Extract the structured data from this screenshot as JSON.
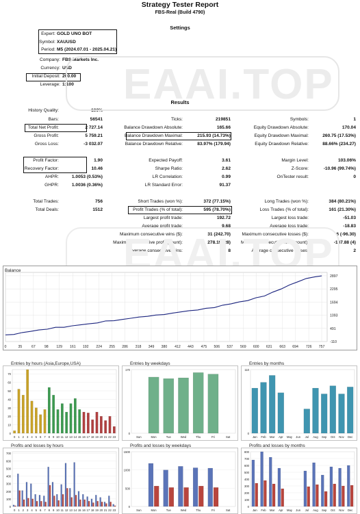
{
  "header": {
    "title": "Strategy Tester Report",
    "subtitle": "FBS-Real (Build 4790)"
  },
  "settings": {
    "heading": "Settings",
    "fields": [
      {
        "label": "Expert:",
        "value": "GOLD UNO BOT"
      },
      {
        "label": "Symbol:",
        "value": "XAUUSD"
      },
      {
        "label": "Period:",
        "value": "M5 (2024.07.01 - 2025.04.21)"
      },
      {
        "label": "Company:",
        "value": "FBS Markets Inc."
      },
      {
        "label": "Currency:",
        "value": "USD"
      },
      {
        "label": "Initial Deposit:",
        "value": "200.00"
      },
      {
        "label": "Leverage:",
        "value": "1:100"
      }
    ]
  },
  "results": {
    "heading": "Results",
    "col1": [
      {
        "label": "History Quality:",
        "value": "100%"
      },
      {
        "label": "Bars:",
        "value": "56541"
      },
      {
        "label": "Total Net Profit:",
        "value": "2 727.14"
      },
      {
        "label": "Gross Profit:",
        "value": "5 759.21"
      },
      {
        "label": "Gross Loss:",
        "value": "-3 032.07"
      },
      {
        "label": "Profit Factor:",
        "value": "1.90"
      },
      {
        "label": "Recovery Factor:",
        "value": "10.46"
      },
      {
        "label": "AHPR:",
        "value": "1.0053 (0.53%)"
      },
      {
        "label": "GHPR:",
        "value": "1.0036 (0.36%)"
      },
      {
        "label": "Total Trades:",
        "value": "756"
      },
      {
        "label": "Total Deals:",
        "value": "1512"
      }
    ],
    "col2": [
      {
        "label": "Ticks:",
        "value": "219851"
      },
      {
        "label": "Balance Drawdown Absolute:",
        "value": "165.66"
      },
      {
        "label": "Balance Drawdown Maximal:",
        "value": "215.93 (14.73%)"
      },
      {
        "label": "Balance Drawdown Relative:",
        "value": "83.97% (179.94)"
      },
      {
        "label": "Expected Payoff:",
        "value": "3.61"
      },
      {
        "label": "Sharpe Ratio:",
        "value": "2.62"
      },
      {
        "label": "LR Correlation:",
        "value": "0.99"
      },
      {
        "label": "LR Standard Error:",
        "value": "91.37"
      },
      {
        "label": "Short Trades (won %):",
        "value": "372 (77.15%)"
      },
      {
        "label": "Profit Trades (% of total):",
        "value": "595 (78.70%)"
      },
      {
        "label": "Largest profit trade:",
        "value": "192.72"
      },
      {
        "label": "Average profit trade:",
        "value": "9.68"
      },
      {
        "label": "Maximum consecutive wins ($):",
        "value": "31 (242.70)"
      },
      {
        "label": "Maximal consecutive profit (count):",
        "value": "278.19 (28)"
      },
      {
        "label": "Average consecutive wins:",
        "value": "8"
      }
    ],
    "col3": [
      {
        "label": "Symbols:",
        "value": "1"
      },
      {
        "label": "Equity Drawdown Absolute:",
        "value": "170.04"
      },
      {
        "label": "Equity Drawdown Maximal:",
        "value": "260.75 (17.53%)"
      },
      {
        "label": "Equity Drawdown Relative:",
        "value": "88.66% (234.27)"
      },
      {
        "label": "Margin Level:",
        "value": "103.06%"
      },
      {
        "label": "Z-Score:",
        "value": "-10.96 (99.74%)"
      },
      {
        "label": "OnTester result:",
        "value": "0"
      },
      {
        "label": "Long Trades (won %):",
        "value": "384 (80.21%)"
      },
      {
        "label": "Loss Trades (% of total):",
        "value": "161 (21.30%)"
      },
      {
        "label": "Largest loss trade:",
        "value": "-51.03"
      },
      {
        "label": "Average loss trade:",
        "value": "-18.83"
      },
      {
        "label": "Maximum consecutive losses ($):",
        "value": "6 (-96.30)"
      },
      {
        "label": "Maximal consecutive loss (count):",
        "value": "-137.88 (4)"
      },
      {
        "label": "Average consecutive losses:",
        "value": "2"
      }
    ]
  },
  "watermark": "EAAI.TOP",
  "chart_data": [
    {
      "type": "line",
      "title": "Balance",
      "x_ticks": [
        0,
        35,
        67,
        98,
        129,
        161,
        192,
        224,
        255,
        286,
        318,
        349,
        380,
        412,
        443,
        475,
        506,
        537,
        569,
        600,
        631,
        663,
        694,
        726,
        757
      ],
      "y_ticks": [
        -110,
        491,
        1093,
        1694,
        2295,
        2897
      ],
      "xlim": [
        0,
        770
      ],
      "ylim": [
        -110,
        3050
      ],
      "x": [
        0,
        20,
        40,
        60,
        80,
        100,
        120,
        140,
        160,
        180,
        200,
        220,
        240,
        260,
        280,
        300,
        320,
        340,
        360,
        380,
        400,
        420,
        440,
        460,
        480,
        500,
        520,
        540,
        560,
        580,
        600,
        620,
        640,
        660,
        680,
        700,
        720,
        740,
        757
      ],
      "y": [
        180,
        230,
        300,
        360,
        420,
        470,
        530,
        560,
        610,
        660,
        700,
        760,
        820,
        860,
        900,
        960,
        1010,
        1060,
        1090,
        1140,
        1190,
        1250,
        1300,
        1350,
        1400,
        1460,
        1550,
        1620,
        1700,
        1780,
        1880,
        1990,
        2150,
        2300,
        2480,
        2640,
        2760,
        2860,
        2890
      ]
    },
    {
      "type": "bar",
      "title": "Entries by hours (Asia,Europe,USA)",
      "categories": [
        "0",
        "1",
        "2",
        "3",
        "4",
        "5",
        "6",
        "7",
        "8",
        "9",
        "10",
        "11",
        "12",
        "13",
        "14",
        "15",
        "16",
        "17",
        "18",
        "19",
        "20",
        "21",
        "22",
        "23"
      ],
      "values": [
        3,
        52,
        45,
        75,
        38,
        30,
        22,
        28,
        54,
        45,
        28,
        35,
        25,
        35,
        41,
        28,
        25,
        24,
        16,
        25,
        20,
        15,
        20,
        8
      ],
      "y_ticks": [
        0,
        10,
        20,
        30,
        40,
        50,
        60,
        70
      ],
      "ylim": [
        0,
        75
      ],
      "colors": [
        "#c8a227",
        "#3c9a50",
        "#b04040"
      ]
    },
    {
      "type": "bar",
      "title": "Entries by weekdays",
      "categories": [
        "Sun",
        "Mon",
        "Tue",
        "Wed",
        "Thu",
        "Fri",
        "Sat"
      ],
      "values": [
        0,
        150,
        146,
        148,
        162,
        158,
        0
      ],
      "y_ticks": [
        0,
        170
      ],
      "ylim": [
        0,
        170
      ]
    },
    {
      "type": "bar",
      "title": "Entries by months",
      "categories": [
        "Jan",
        "Feb",
        "Mar",
        "Apr",
        "May",
        "Jun",
        "Jul",
        "Aug",
        "Sep",
        "Oct",
        "Nov",
        "Dec"
      ],
      "values": [
        78,
        88,
        100,
        70,
        0,
        0,
        42,
        78,
        68,
        82,
        68,
        80
      ],
      "y_ticks": [
        0,
        110
      ],
      "ylim": [
        0,
        110
      ]
    },
    {
      "type": "bar",
      "title": "Profits and losses by hours",
      "categories": [
        "0",
        "1",
        "2",
        "3",
        "4",
        "5",
        "6",
        "7",
        "8",
        "9",
        "10",
        "11",
        "12",
        "13",
        "14",
        "15",
        "16",
        "17",
        "18",
        "19",
        "20",
        "21",
        "22",
        "23"
      ],
      "series": [
        {
          "values": [
            20,
            430,
            210,
            320,
            300,
            160,
            150,
            140,
            520,
            320,
            160,
            290,
            570,
            240,
            580,
            200,
            160,
            130,
            100,
            150,
            120,
            60,
            140,
            30
          ]
        },
        {
          "values": [
            10,
            210,
            90,
            110,
            100,
            70,
            70,
            60,
            280,
            140,
            80,
            160,
            240,
            120,
            150,
            90,
            90,
            70,
            50,
            70,
            60,
            40,
            60,
            10
          ]
        }
      ],
      "y_ticks": [
        0,
        100,
        200,
        300,
        400,
        500,
        600,
        700
      ],
      "ylim": [
        0,
        720
      ]
    },
    {
      "type": "bar",
      "title": "Profits and losses by weekdays",
      "categories": [
        "Sun",
        "Mon",
        "Tue",
        "Wed",
        "Thu",
        "Fri",
        "Sat"
      ],
      "series": [
        {
          "values": [
            0,
            1180,
            1000,
            1100,
            1060,
            1050,
            0
          ]
        },
        {
          "values": [
            0,
            560,
            520,
            520,
            560,
            520,
            0
          ]
        }
      ],
      "y_ticks": [
        0,
        500,
        1000,
        1500
      ],
      "ylim": [
        0,
        1500
      ]
    },
    {
      "type": "bar",
      "title": "Profits and losses by months",
      "categories": [
        "Jan",
        "Feb",
        "Mar",
        "Apr",
        "May",
        "Jun",
        "Jul",
        "Aug",
        "Sep",
        "Oct",
        "Nov",
        "Dec"
      ],
      "series": [
        {
          "values": [
            680,
            800,
            720,
            560,
            0,
            0,
            520,
            640,
            460,
            580,
            560,
            600
          ]
        },
        {
          "values": [
            340,
            380,
            330,
            260,
            0,
            0,
            290,
            320,
            220,
            330,
            300,
            310
          ]
        }
      ],
      "y_ticks": [
        0,
        100,
        200,
        300,
        400,
        500,
        600,
        700,
        800
      ],
      "ylim": [
        0,
        800
      ]
    }
  ]
}
